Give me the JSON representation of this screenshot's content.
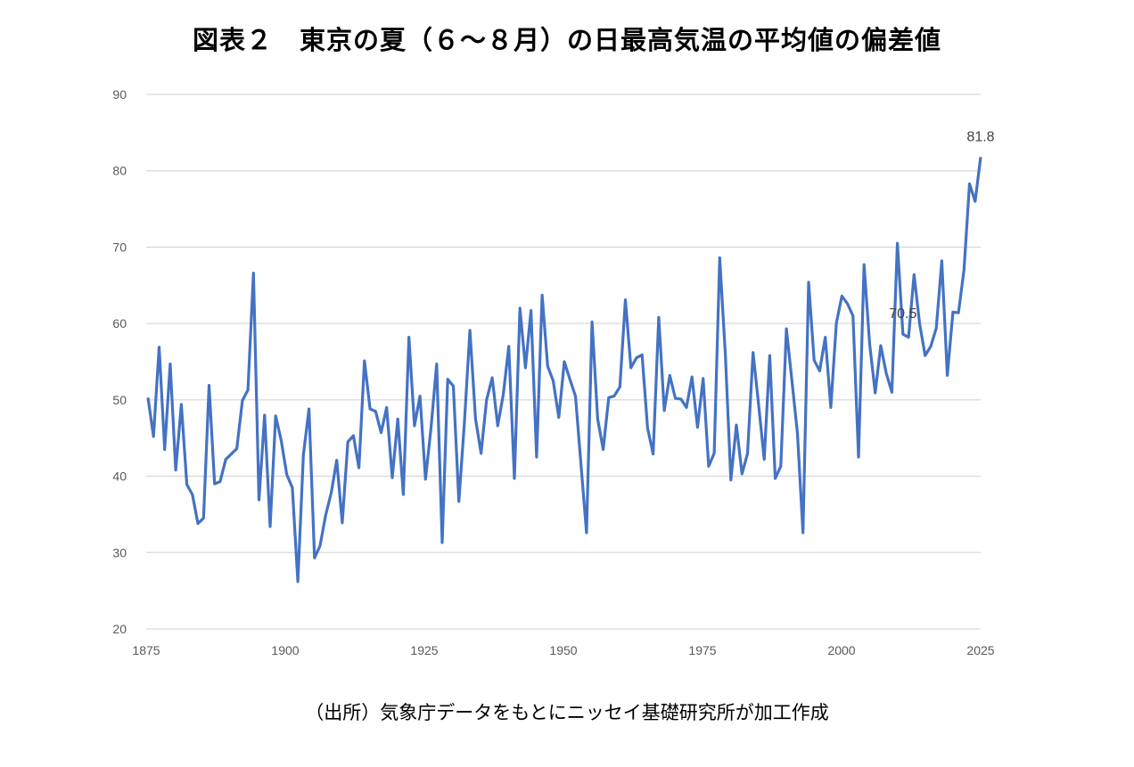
{
  "chart_data": {
    "type": "line",
    "title": "図表２　東京の夏（６～８月）の日最高気温の平均値の偏差値",
    "source": "（出所）気象庁データをもとにニッセイ基礎研究所が加工作成",
    "xlabel": "",
    "ylabel": "",
    "xlim": [
      1875,
      2025
    ],
    "ylim": [
      20,
      90
    ],
    "xticks": [
      "1875",
      "1900",
      "1925",
      "1950",
      "1975",
      "2000",
      "2025"
    ],
    "yticks": [
      "20",
      "30",
      "40",
      "50",
      "60",
      "70",
      "80",
      "90"
    ],
    "grid": true,
    "series_color": "#4472c4",
    "start_year": 1875,
    "values": [
      50.3,
      45.2,
      56.9,
      43.5,
      54.7,
      40.8,
      49.4,
      38.9,
      37.6,
      33.8,
      34.5,
      51.9,
      39.0,
      39.3,
      42.2,
      42.9,
      43.6,
      49.9,
      51.3,
      66.6,
      36.9,
      48.0,
      33.4,
      47.9,
      44.7,
      40.2,
      38.5,
      26.2,
      42.8,
      48.8,
      29.3,
      30.9,
      34.9,
      37.8,
      42.1,
      33.9,
      44.5,
      45.3,
      41.1,
      55.1,
      48.8,
      48.5,
      45.7,
      49.0,
      39.8,
      47.5,
      37.6,
      58.2,
      46.6,
      50.5,
      39.6,
      46.5,
      54.7,
      31.3,
      52.7,
      51.8,
      36.7,
      47.0,
      59.1,
      47.5,
      43.0,
      50.0,
      52.9,
      46.6,
      50.7,
      57.0,
      39.7,
      62.0,
      54.2,
      61.7,
      42.5,
      63.7,
      54.4,
      52.5,
      47.7,
      55.0,
      52.7,
      50.5,
      41.5,
      32.6,
      60.2,
      47.5,
      43.5,
      50.3,
      50.5,
      51.7,
      63.1,
      54.2,
      55.5,
      55.9,
      46.3,
      42.9,
      60.8,
      48.6,
      53.2,
      50.2,
      50.1,
      49.0,
      53.0,
      46.4,
      52.8,
      41.3,
      43.0,
      68.6,
      56.0,
      39.5,
      46.7,
      40.3,
      43.0,
      56.2,
      49.4,
      42.2,
      55.8,
      39.7,
      41.3,
      59.3,
      52.5,
      45.6,
      32.6,
      65.4,
      55.2,
      53.8,
      58.2,
      49.0,
      60.0,
      63.6,
      62.6,
      61.0,
      42.5,
      67.7,
      57.3,
      50.9,
      57.1,
      53.5,
      51.0,
      70.5,
      58.6,
      58.2,
      66.4,
      60.0,
      55.8,
      57.0,
      59.4,
      68.2,
      53.2,
      61.5,
      61.4,
      67.0,
      78.3,
      76.0,
      81.8
    ],
    "annotations": [
      {
        "index": 136,
        "text": "70.5"
      },
      {
        "index": 150,
        "text": "81.8"
      }
    ]
  }
}
